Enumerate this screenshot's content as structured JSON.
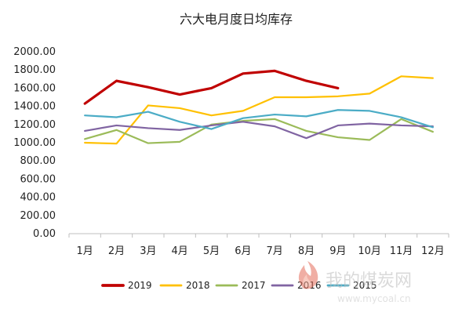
{
  "chart_data": {
    "type": "line",
    "title": "六大电月度日均库存",
    "xlabel": "",
    "ylabel": "",
    "categories": [
      "1月",
      "2月",
      "3月",
      "4月",
      "5月",
      "6月",
      "7月",
      "8月",
      "9月",
      "10月",
      "11月",
      "12月"
    ],
    "y_ticks": [
      "0.00",
      "200.00",
      "400.00",
      "600.00",
      "800.00",
      "1000.00",
      "1200.00",
      "1400.00",
      "1600.00",
      "1800.00",
      "2000.00"
    ],
    "ylim": [
      0,
      2000
    ],
    "grid": false,
    "legend_position": "bottom",
    "series": [
      {
        "name": "2019",
        "color": "#c00000",
        "values": [
          1430,
          1680,
          1610,
          1530,
          1600,
          1760,
          1790,
          1680,
          1600,
          null,
          null,
          null
        ]
      },
      {
        "name": "2018",
        "color": "#ffc000",
        "values": [
          1000,
          990,
          1410,
          1380,
          1300,
          1350,
          1500,
          1500,
          1510,
          1540,
          1730,
          1710
        ]
      },
      {
        "name": "2017",
        "color": "#9bbb59",
        "values": [
          1040,
          1140,
          995,
          1010,
          1200,
          1240,
          1260,
          1130,
          1060,
          1030,
          1260,
          1120
        ]
      },
      {
        "name": "2016",
        "color": "#8064a2",
        "values": [
          1130,
          1190,
          1160,
          1140,
          1190,
          1230,
          1180,
          1050,
          1190,
          1210,
          1190,
          1180
        ]
      },
      {
        "name": "2015",
        "color": "#4bacc6",
        "values": [
          1300,
          1280,
          1340,
          1230,
          1150,
          1270,
          1310,
          1290,
          1360,
          1350,
          1280,
          1170
        ]
      }
    ]
  },
  "watermark": {
    "cn": "我的煤炭网",
    "url": "www.mycoal.cn"
  }
}
